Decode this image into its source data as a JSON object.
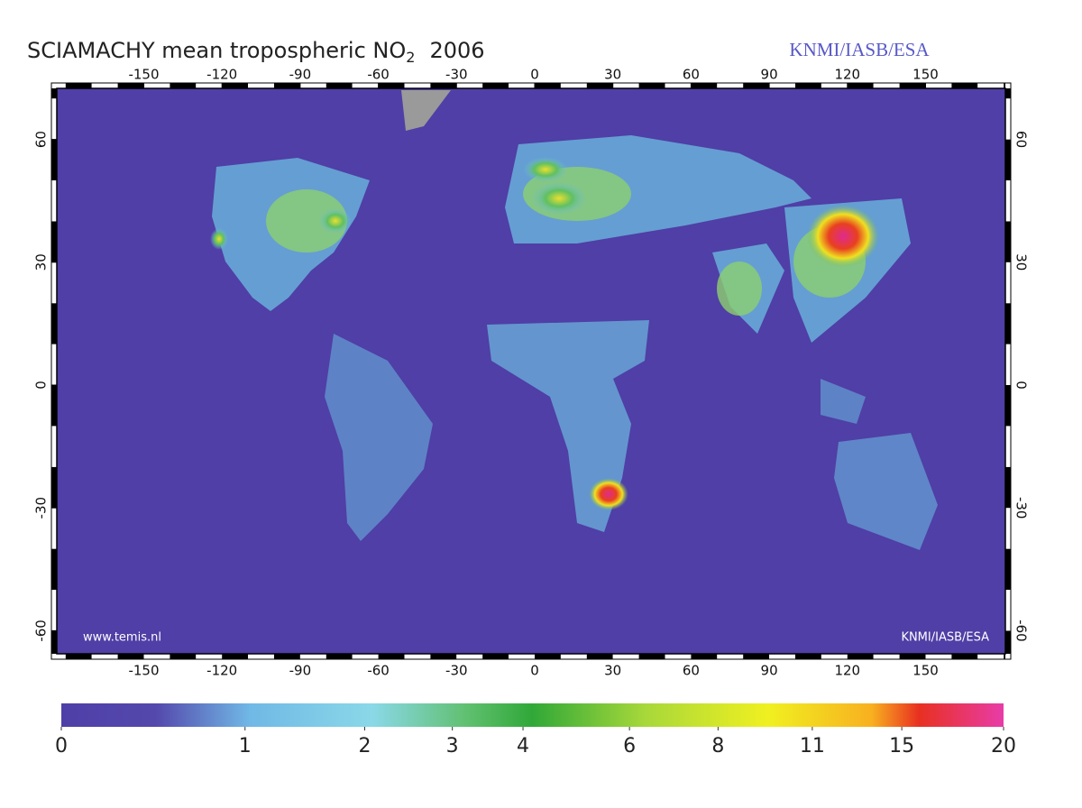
{
  "header": {
    "title": "SCIAMACHY mean tropospheric NO",
    "title_subscript": "2",
    "title_year": "2006",
    "credit": "KNMI/IASB/ESA"
  },
  "map": {
    "lon_ticks": [
      -150,
      -120,
      -90,
      -60,
      -30,
      0,
      30,
      60,
      90,
      120,
      150
    ],
    "lat_ticks": [
      60,
      30,
      0,
      -30,
      -60
    ],
    "website": "www.temis.nl",
    "credit": "KNMI/IASB/ESA"
  },
  "colorbar": {
    "ticks": [
      0,
      1,
      2,
      3,
      4,
      6,
      8,
      11,
      15,
      20
    ]
  }
}
